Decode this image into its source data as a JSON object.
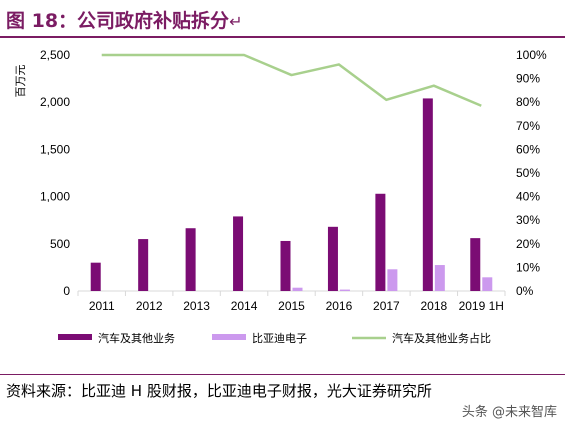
{
  "figure": {
    "title": "图 18：公司政府补贴拆分",
    "return_mark": "↵",
    "source": "资料来源：比亚迪 H 股财报，比亚迪电子财报，光大证券研究所",
    "watermark": "头条 @未来智库"
  },
  "chart_data": {
    "type": "bar",
    "categories": [
      "2011",
      "2012",
      "2013",
      "2014",
      "2015",
      "2016",
      "2017",
      "2018",
      "2019 1H"
    ],
    "ylabel": "百万元",
    "ylim": [
      0,
      2500
    ],
    "y_ticks": [
      "0",
      "500",
      "1,000",
      "1,500",
      "2,000",
      "2,500"
    ],
    "y2lim": [
      0,
      100
    ],
    "y2_ticks": [
      "0%",
      "10%",
      "20%",
      "30%",
      "40%",
      "50%",
      "60%",
      "70%",
      "80%",
      "90%",
      "100%"
    ],
    "legend_position": "bottom",
    "grid": false,
    "series": [
      {
        "name": "汽车及其他业务",
        "type": "bar",
        "axis": "left",
        "color": "#7b0c74",
        "values": [
          300,
          550,
          665,
          790,
          530,
          680,
          1030,
          2040,
          560
        ]
      },
      {
        "name": "比亚迪电子",
        "type": "bar",
        "axis": "left",
        "color": "#cc99ee",
        "values": [
          0,
          0,
          0,
          0,
          35,
          15,
          230,
          275,
          145
        ]
      },
      {
        "name": "汽车及其他业务占比",
        "type": "line",
        "axis": "right",
        "color": "#a8d08d",
        "values": [
          100,
          100,
          100,
          100,
          91.5,
          96,
          81,
          87,
          78.5
        ]
      }
    ]
  }
}
